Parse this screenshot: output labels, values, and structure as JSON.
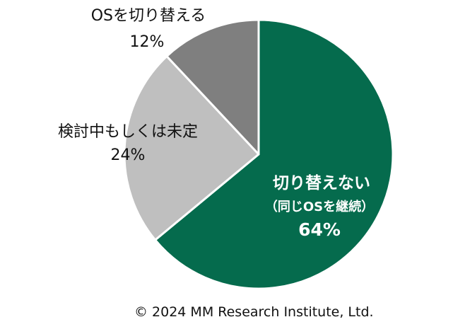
{
  "chart_data": {
    "type": "pie",
    "slices": [
      {
        "label": "切り替えない",
        "sublabel": "（同じOSを継続）",
        "value": 64,
        "value_label": "64%",
        "color": "#056b4d"
      },
      {
        "label": "検討中もしくは未定",
        "value": 24,
        "value_label": "24%",
        "color": "#bfbfbf"
      },
      {
        "label": "OSを切り替える",
        "value": 12,
        "value_label": "12%",
        "color": "#7f7f7f"
      }
    ],
    "start_angle": "12 o'clock",
    "direction": "clockwise",
    "slice_border_color": "#ffffff"
  },
  "copyright": "© 2024 MM Research Institute, Ltd."
}
